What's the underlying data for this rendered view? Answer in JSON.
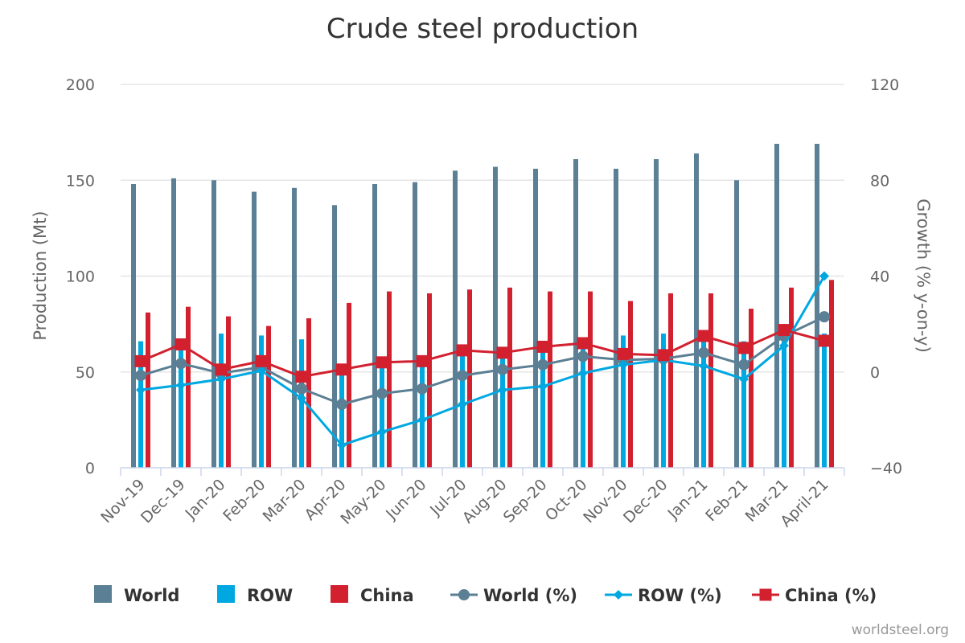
{
  "chart_data": {
    "type": "bar",
    "title": "Crude steel production",
    "ylabel": "Production (Mt)",
    "y2label": "Growth (% y-on-y)",
    "ylim": [
      0,
      200
    ],
    "y2lim": [
      -40,
      120
    ],
    "yticks": [
      "0",
      "50",
      "100",
      "150",
      "200"
    ],
    "y2ticks": [
      "−40",
      "0",
      "40",
      "80",
      "120"
    ],
    "grid": true,
    "legend_position": "bottom",
    "credit": "worldsteel.org",
    "categories": [
      "Nov-19",
      "Dec-19",
      "Jan-20",
      "Feb-20",
      "Mar-20",
      "Apr-20",
      "May-20",
      "Jun-20",
      "Jul-20",
      "Aug-20",
      "Sep-20",
      "Oct-20",
      "Nov-20",
      "Dec-20",
      "Jan-21",
      "Feb-21",
      "Mar-21",
      "April-21"
    ],
    "bar_series": [
      {
        "name": "World",
        "color": "#5b7f94",
        "values": [
          148,
          151,
          150,
          144,
          146,
          137,
          148,
          149,
          155,
          157,
          156,
          161,
          156,
          161,
          164,
          150,
          169,
          169
        ]
      },
      {
        "name": "ROW",
        "color": "#00a8e1",
        "values": [
          66,
          67,
          70,
          69,
          67,
          51,
          56,
          58,
          62,
          63,
          64,
          68,
          69,
          70,
          66,
          66,
          75,
          70
        ]
      },
      {
        "name": "China",
        "color": "#d2202f",
        "values": [
          81,
          84,
          79,
          74,
          78,
          86,
          92,
          91,
          93,
          94,
          92,
          92,
          87,
          91,
          91,
          83,
          94,
          98
        ]
      }
    ],
    "line_series": [
      {
        "name": "World (%)",
        "color": "#5b7f94",
        "marker": "circle",
        "axis": "right",
        "values": [
          -1.5,
          3.5,
          -0.5,
          2,
          -7,
          -13.5,
          -9,
          -7,
          -1.5,
          1,
          3,
          6.5,
          5,
          5.5,
          8,
          3,
          15,
          23
        ]
      },
      {
        "name": "ROW (%)",
        "color": "#00a8e1",
        "marker": "diamond",
        "axis": "right",
        "values": [
          -7.5,
          -5.5,
          -3,
          0.5,
          -11,
          -30.5,
          -25,
          -20,
          -13.5,
          -7.5,
          -6,
          -0.5,
          3,
          5,
          2.5,
          -3,
          11,
          40
        ]
      },
      {
        "name": "China (%)",
        "color": "#d2202f",
        "marker": "square",
        "axis": "right",
        "values": [
          4.5,
          11.5,
          1,
          4.5,
          -2,
          1,
          4,
          4.5,
          9,
          8,
          10.5,
          12,
          7.5,
          7,
          15,
          10,
          17.5,
          13
        ]
      }
    ]
  }
}
